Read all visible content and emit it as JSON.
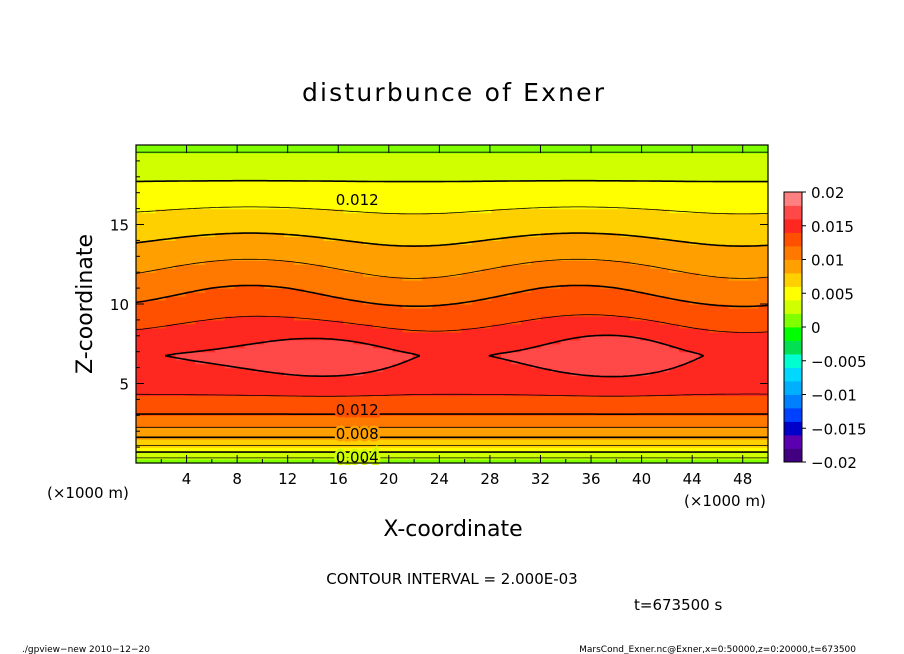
{
  "chart_data": {
    "type": "contour",
    "title": "disturbunce of Exner",
    "xlabel": "X-coordinate",
    "ylabel": "Z-coordinate",
    "x_units": "(×1000 m)",
    "y_units": "(×1000 m)",
    "xlim": [
      0,
      50
    ],
    "ylim": [
      0,
      20
    ],
    "x_ticks": [
      4,
      8,
      12,
      16,
      20,
      24,
      28,
      32,
      36,
      40,
      44,
      48
    ],
    "y_ticks": [
      5,
      10,
      15
    ],
    "contour_interval_text": "CONTOUR INTERVAL = 2.000E-03",
    "contour_labels": [
      {
        "text": "0.012",
        "x": 17.5,
        "z": 16.6
      },
      {
        "text": "0.012",
        "x": 17.5,
        "z": 3.4
      },
      {
        "text": "0.008",
        "x": 17.5,
        "z": 1.9
      },
      {
        "text": "0.004",
        "x": 17.5,
        "z": 0.4
      }
    ],
    "colorbar": {
      "range": [
        -0.02,
        0.02
      ],
      "tick_labels": [
        "0.02",
        "0.015",
        "0.01",
        "0.005",
        "0",
        "−0.005",
        "−0.01",
        "−0.015",
        "−0.02"
      ],
      "colors": [
        "#400080",
        "#5a00b0",
        "#0000c8",
        "#0040ff",
        "#0080ff",
        "#00b0ff",
        "#00d8ff",
        "#00ffd0",
        "#00e050",
        "#00ff00",
        "#80ff00",
        "#d0ff00",
        "#ffff00",
        "#ffd000",
        "#ffa000",
        "#ff7800",
        "#ff5000",
        "#ff2820",
        "#ff4848",
        "#ff8080"
      ]
    },
    "time_text": "t=673500 s",
    "footer_left": "./gpview−new   2010−12−20",
    "footer_right": "MarsCond_Exner.nc@Exner,x=0:50000,z=0:20000,t=673500"
  }
}
